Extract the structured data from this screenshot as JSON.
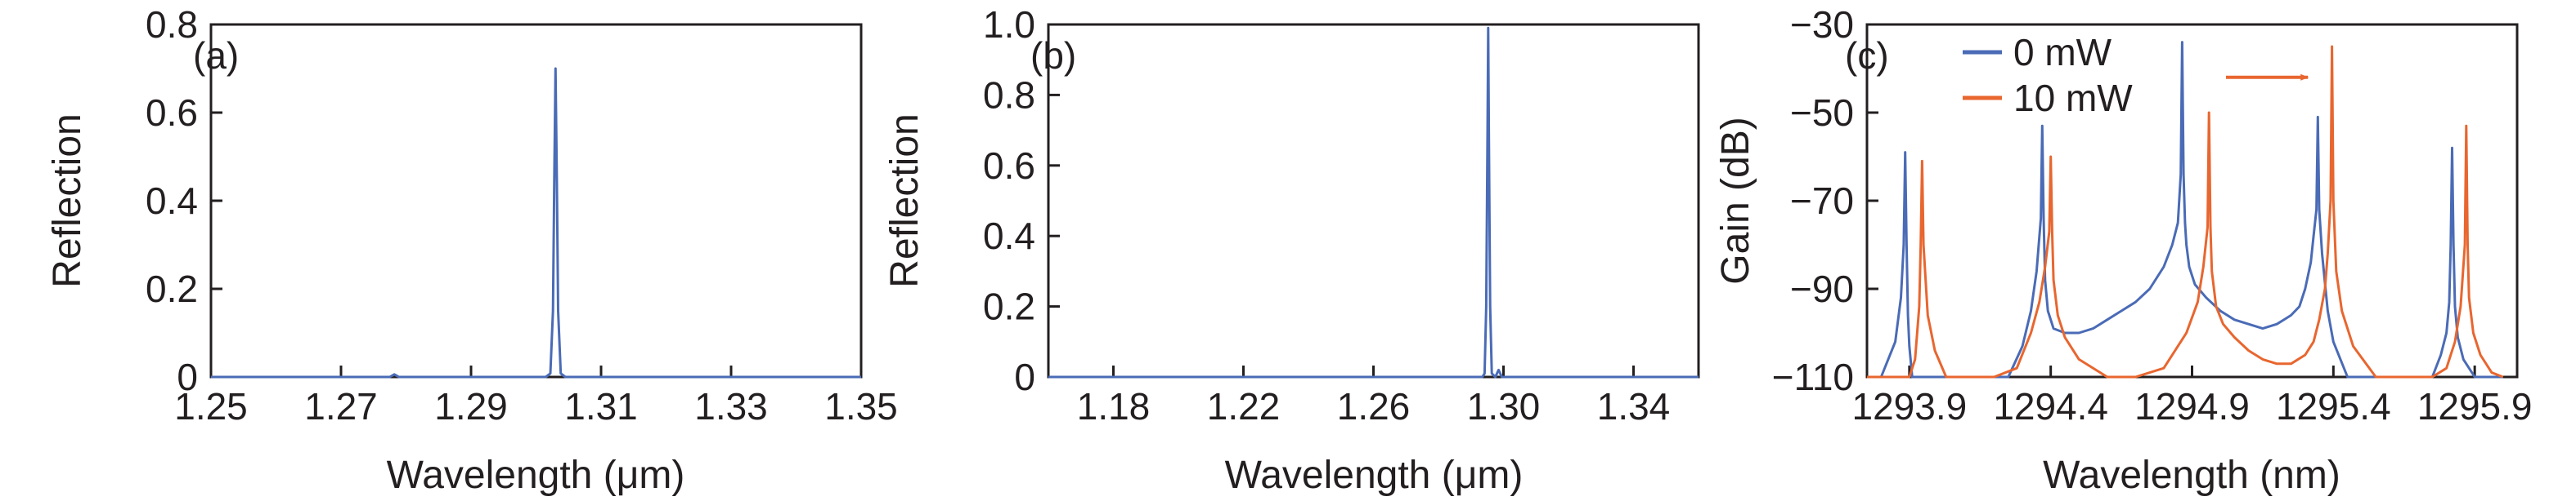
{
  "colors": {
    "blue": "#4a6bb6",
    "orange": "#e8662f",
    "axis": "#231f20"
  },
  "chart_data": [
    {
      "type": "line",
      "panel_label": "(a)",
      "xlabel": "Wavelength (μm)",
      "ylabel": "Reflection",
      "xlim": [
        1.25,
        1.35
      ],
      "ylim": [
        0,
        0.8
      ],
      "x_ticks": [
        1.25,
        1.27,
        1.29,
        1.31,
        1.33,
        1.35
      ],
      "x_tick_labels": [
        "1.25",
        "1.27",
        "1.29",
        "1.31",
        "1.33",
        "1.35"
      ],
      "y_ticks": [
        0,
        0.2,
        0.4,
        0.6,
        0.8
      ],
      "y_tick_labels": [
        "0",
        "0.2",
        "0.4",
        "0.6",
        "0.8"
      ],
      "grid": false,
      "series": [
        {
          "color": "#4a6bb6",
          "x": [
            1.25,
            1.2775,
            1.2782,
            1.2789,
            1.3015,
            1.3022,
            1.3026,
            1.3028,
            1.303,
            1.3032,
            1.3034,
            1.3038,
            1.3045,
            1.35
          ],
          "y": [
            0,
            0,
            0.006,
            0,
            0,
            0.008,
            0.15,
            0.45,
            0.7,
            0.45,
            0.15,
            0.008,
            0,
            0
          ]
        }
      ]
    },
    {
      "type": "line",
      "panel_label": "(b)",
      "xlabel": "Wavelength (μm)",
      "ylabel": "Reflection",
      "xlim": [
        1.16,
        1.36
      ],
      "ylim": [
        0,
        1.0
      ],
      "x_ticks": [
        1.18,
        1.22,
        1.26,
        1.3,
        1.34
      ],
      "x_tick_labels": [
        "1.18",
        "1.22",
        "1.26",
        "1.30",
        "1.34"
      ],
      "y_ticks": [
        0,
        0.2,
        0.4,
        0.6,
        0.8,
        1.0
      ],
      "y_tick_labels": [
        "0",
        "0.2",
        "0.4",
        "0.6",
        "0.8",
        "1.0"
      ],
      "grid": false,
      "series": [
        {
          "color": "#4a6bb6",
          "x": [
            1.16,
            1.2935,
            1.2942,
            1.2947,
            1.2951,
            1.2953,
            1.2955,
            1.2959,
            1.2964,
            1.2975,
            1.2985,
            1.2995,
            1.36
          ],
          "y": [
            0,
            0,
            0.01,
            0.2,
            0.7,
            0.99,
            0.7,
            0.2,
            0.01,
            0,
            0.02,
            0,
            0
          ]
        }
      ]
    },
    {
      "type": "line",
      "panel_label": "(c)",
      "xlabel": "Wavelength (nm)",
      "ylabel": "Gain (dB)",
      "xlim": [
        1293.75,
        1296.05
      ],
      "ylim": [
        -110,
        -30
      ],
      "x_ticks": [
        1293.9,
        1294.4,
        1294.9,
        1295.4,
        1295.9
      ],
      "x_tick_labels": [
        "1293.9",
        "1294.4",
        "1294.9",
        "1295.4",
        "1295.9"
      ],
      "y_ticks": [
        -110,
        -90,
        -70,
        -50,
        -30
      ],
      "y_tick_labels": [
        "−110",
        "−90",
        "−70",
        "−50",
        "−30"
      ],
      "grid": false,
      "legend_position": "top-left",
      "annotation": {
        "type": "arrow",
        "color": "#e8662f",
        "from_x": 1295.02,
        "to_x": 1295.31,
        "y": -42
      },
      "series": [
        {
          "name": "0 mW",
          "color": "#4a6bb6",
          "x": [
            1293.75,
            1293.8,
            1293.85,
            1293.87,
            1293.88,
            1293.885,
            1293.89,
            1293.895,
            1293.9,
            1293.91,
            1293.93,
            1293.96,
            1294.0,
            1294.05,
            1294.1,
            1294.15,
            1294.2,
            1294.25,
            1294.3,
            1294.33,
            1294.35,
            1294.365,
            1294.37,
            1294.375,
            1294.38,
            1294.39,
            1294.41,
            1294.45,
            1294.5,
            1294.55,
            1294.6,
            1294.65,
            1294.7,
            1294.75,
            1294.8,
            1294.83,
            1294.85,
            1294.86,
            1294.865,
            1294.87,
            1294.875,
            1294.88,
            1294.89,
            1294.91,
            1294.95,
            1295.0,
            1295.05,
            1295.1,
            1295.15,
            1295.2,
            1295.25,
            1295.28,
            1295.3,
            1295.32,
            1295.33,
            1295.34,
            1295.345,
            1295.35,
            1295.36,
            1295.38,
            1295.4,
            1295.45,
            1295.5,
            1295.55,
            1295.6,
            1295.65,
            1295.7,
            1295.75,
            1295.78,
            1295.8,
            1295.81,
            1295.815,
            1295.82,
            1295.825,
            1295.83,
            1295.84,
            1295.86,
            1295.9,
            1295.95,
            1296.0
          ],
          "y": [
            -110,
            -110,
            -102,
            -92,
            -80,
            -59,
            -80,
            -96,
            -103,
            -110,
            -110,
            -110,
            -110,
            -110,
            -110,
            -110,
            -110,
            -110,
            -103,
            -95,
            -86,
            -74,
            -53,
            -74,
            -88,
            -95,
            -99,
            -100,
            -100,
            -99,
            -97,
            -95,
            -93,
            -90,
            -85,
            -80,
            -75,
            -64,
            -34,
            -64,
            -75,
            -80,
            -85,
            -89,
            -92,
            -95,
            -97,
            -98,
            -99,
            -98,
            -96,
            -94,
            -90,
            -84,
            -78,
            -72,
            -51,
            -72,
            -82,
            -95,
            -102,
            -110,
            -110,
            -110,
            -110,
            -110,
            -110,
            -110,
            -105,
            -100,
            -93,
            -80,
            -58,
            -80,
            -94,
            -101,
            -106,
            -110,
            -110,
            -110
          ]
        },
        {
          "name": "10 mW",
          "color": "#e8662f",
          "x": [
            1293.75,
            1293.85,
            1293.9,
            1293.92,
            1293.935,
            1293.94,
            1293.945,
            1293.95,
            1293.965,
            1293.99,
            1294.03,
            1294.1,
            1294.2,
            1294.28,
            1294.33,
            1294.36,
            1294.38,
            1294.395,
            1294.4,
            1294.405,
            1294.41,
            1294.425,
            1294.45,
            1294.5,
            1294.6,
            1294.7,
            1294.8,
            1294.88,
            1294.92,
            1294.94,
            1294.955,
            1294.96,
            1294.965,
            1294.97,
            1294.985,
            1295.01,
            1295.05,
            1295.1,
            1295.15,
            1295.2,
            1295.25,
            1295.3,
            1295.33,
            1295.35,
            1295.37,
            1295.38,
            1295.39,
            1295.395,
            1295.4,
            1295.41,
            1295.43,
            1295.47,
            1295.55,
            1295.65,
            1295.75,
            1295.8,
            1295.83,
            1295.85,
            1295.865,
            1295.87,
            1295.875,
            1295.88,
            1295.895,
            1295.92,
            1295.96,
            1296.0
          ],
          "y": [
            -110,
            -110,
            -110,
            -106,
            -94,
            -80,
            -61,
            -80,
            -96,
            -104,
            -110,
            -110,
            -110,
            -108,
            -100,
            -93,
            -85,
            -77,
            -60,
            -77,
            -88,
            -96,
            -101,
            -106,
            -110,
            -110,
            -108,
            -100,
            -93,
            -85,
            -76,
            -50,
            -76,
            -86,
            -94,
            -98,
            -101,
            -104,
            -106,
            -107,
            -107,
            -105,
            -102,
            -97,
            -90,
            -82,
            -70,
            -35,
            -70,
            -86,
            -95,
            -103,
            -110,
            -110,
            -110,
            -108,
            -102,
            -94,
            -80,
            -53,
            -80,
            -92,
            -100,
            -105,
            -109,
            -110
          ]
        }
      ]
    }
  ]
}
